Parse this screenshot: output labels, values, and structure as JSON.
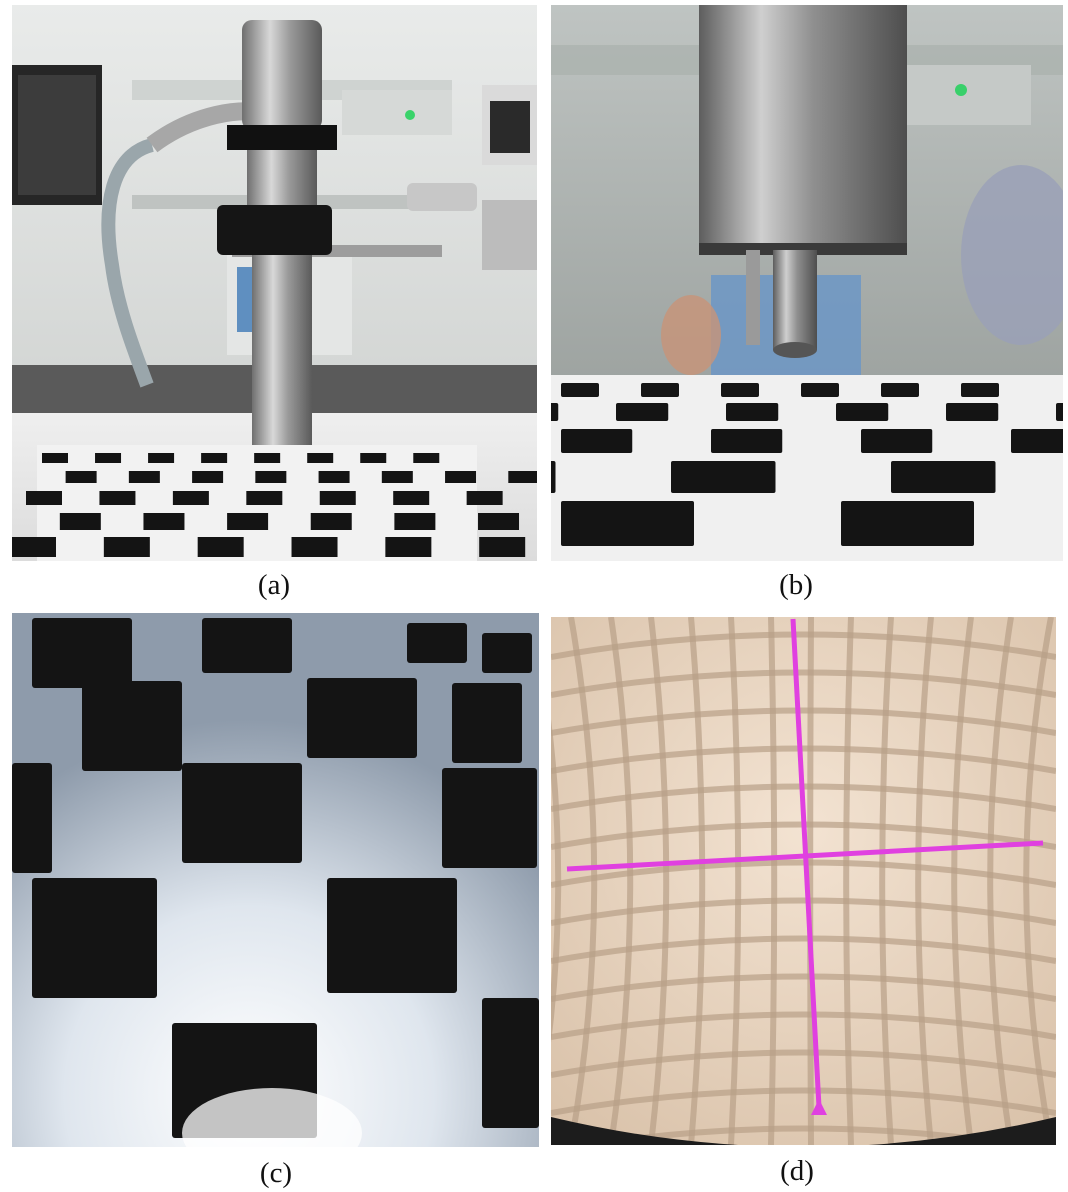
{
  "figure": {
    "panels": [
      {
        "label": "(a)",
        "content": "endoscope-holder-above-checkerboard"
      },
      {
        "label": "(b)",
        "content": "endoscope-tip-closeup-over-checkerboard"
      },
      {
        "label": "(c)",
        "content": "distorted-endoscopic-checkerboard-view"
      },
      {
        "label": "(d)",
        "content": "distorted-grid-with-magenta-crosshair"
      }
    ],
    "colors": {
      "board_dark": "#141414",
      "board_light": "#f2f2f2",
      "steel": "#a9a9a9",
      "crosshair": "#e040e0",
      "tile": "#e8d5c2"
    }
  }
}
